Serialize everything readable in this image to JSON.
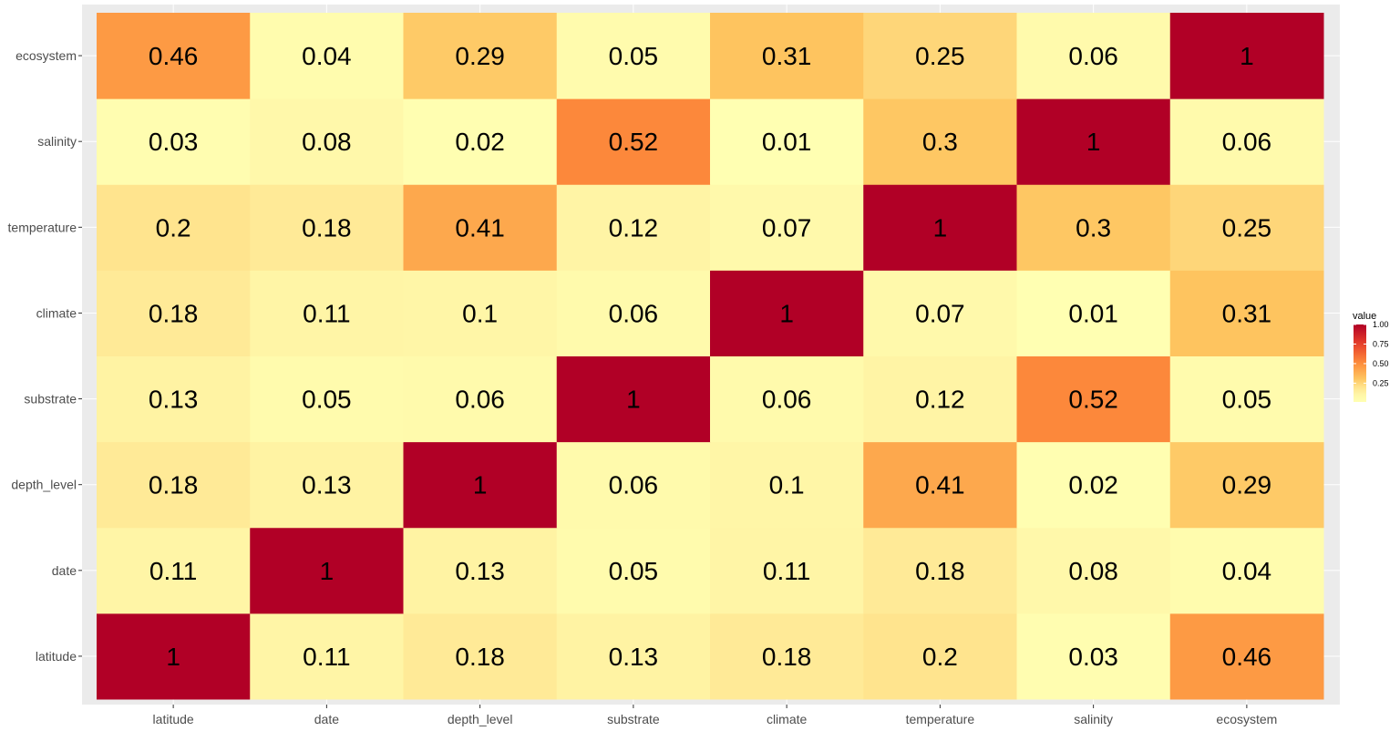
{
  "chart_data": {
    "type": "heatmap",
    "variables": [
      "latitude",
      "date",
      "depth_level",
      "substrate",
      "climate",
      "temperature",
      "salinity",
      "ecosystem"
    ],
    "x_categories": [
      "latitude",
      "date",
      "depth_level",
      "substrate",
      "climate",
      "temperature",
      "salinity",
      "ecosystem"
    ],
    "y_categories": [
      "latitude",
      "date",
      "depth_level",
      "substrate",
      "climate",
      "temperature",
      "salinity",
      "ecosystem"
    ],
    "values": [
      [
        1,
        0.11,
        0.18,
        0.13,
        0.18,
        0.2,
        0.03,
        0.46
      ],
      [
        0.11,
        1,
        0.13,
        0.05,
        0.11,
        0.18,
        0.08,
        0.04
      ],
      [
        0.18,
        0.13,
        1,
        0.06,
        0.1,
        0.41,
        0.02,
        0.29
      ],
      [
        0.13,
        0.05,
        0.06,
        1,
        0.06,
        0.12,
        0.52,
        0.05
      ],
      [
        0.18,
        0.11,
        0.1,
        0.06,
        1,
        0.07,
        0.01,
        0.31
      ],
      [
        0.2,
        0.18,
        0.41,
        0.12,
        0.07,
        1,
        0.3,
        0.25
      ],
      [
        0.03,
        0.08,
        0.02,
        0.52,
        0.01,
        0.3,
        1,
        0.06
      ],
      [
        0.46,
        0.04,
        0.29,
        0.05,
        0.31,
        0.25,
        0.06,
        1
      ]
    ],
    "legend": {
      "title": "value",
      "ticks": [
        "1.00",
        "0.75",
        "0.50",
        "0.25"
      ],
      "tick_values": [
        1.0,
        0.75,
        0.5,
        0.25
      ],
      "range": [
        0.01,
        1.0
      ],
      "placement": "right"
    },
    "colors": {
      "low": "#FFFFB2",
      "mid": "#FD8D3C",
      "high": "#B10026",
      "panel_background": "#EBEBEB",
      "grid": "#FFFFFF"
    },
    "grid": true
  }
}
